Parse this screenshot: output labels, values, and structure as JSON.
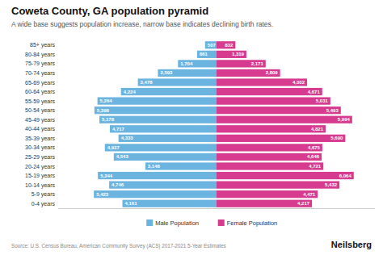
{
  "chart_data": {
    "type": "pyramid",
    "orientation": "horizontal",
    "title": "Coweta County, GA population pyramid",
    "subtitle": "A wide base suggests population increase, narrow base indicates declining birth rates.",
    "source": "Source: U.S. Census Bureau, American Community Survey (ACS) 2017-2021 5-Year Estimates",
    "annotations": [
      "Neilsberg"
    ],
    "categories": [
      "0-4 years",
      "5-9 years",
      "10-14 years",
      "15-19 years",
      "20-24 years",
      "25-29 years",
      "30-34 years",
      "35-39 years",
      "40-44 years",
      "45-49 years",
      "50-54 years",
      "55-59 years",
      "60-64 years",
      "65-69 years",
      "70-74 years",
      "75-79 years",
      "80-84 years",
      "85+ years"
    ],
    "series": [
      {
        "name": "Male Population",
        "color": "#6cb4e0",
        "values": [
          4161,
          5423,
          4746,
          5244,
          3148,
          4543,
          4937,
          4333,
          4717,
          5178,
          5398,
          5264,
          4224,
          3478,
          2593,
          1704,
          861,
          507
        ],
        "value_labels": [
          "4,161",
          "5,423",
          "4,746",
          "5,244",
          "3,148",
          "4,543",
          "4,937",
          "4,333",
          "4,717",
          "5,178",
          "5,398",
          "5,264",
          "4,224",
          "3,478",
          "2,593",
          "1,704",
          "861",
          "507"
        ]
      },
      {
        "name": "Female Population",
        "color": "#d63b8f",
        "values": [
          4217,
          4471,
          5432,
          6064,
          4721,
          4646,
          4675,
          5690,
          4821,
          5994,
          5493,
          5031,
          4671,
          4002,
          2809,
          2171,
          1319,
          832
        ],
        "value_labels": [
          "4,217",
          "4,471",
          "5,432",
          "6,064",
          "4,721",
          "4,646",
          "4,675",
          "5,690",
          "4,821",
          "5,994",
          "5,493",
          "5,031",
          "4,671",
          "4,002",
          "2,809",
          "2,171",
          "1,319",
          "832"
        ]
      }
    ],
    "xlim": [
      -7000,
      7000
    ],
    "data_labels": true,
    "tick_labels": "y",
    "grid": false,
    "legend": "bottom"
  }
}
